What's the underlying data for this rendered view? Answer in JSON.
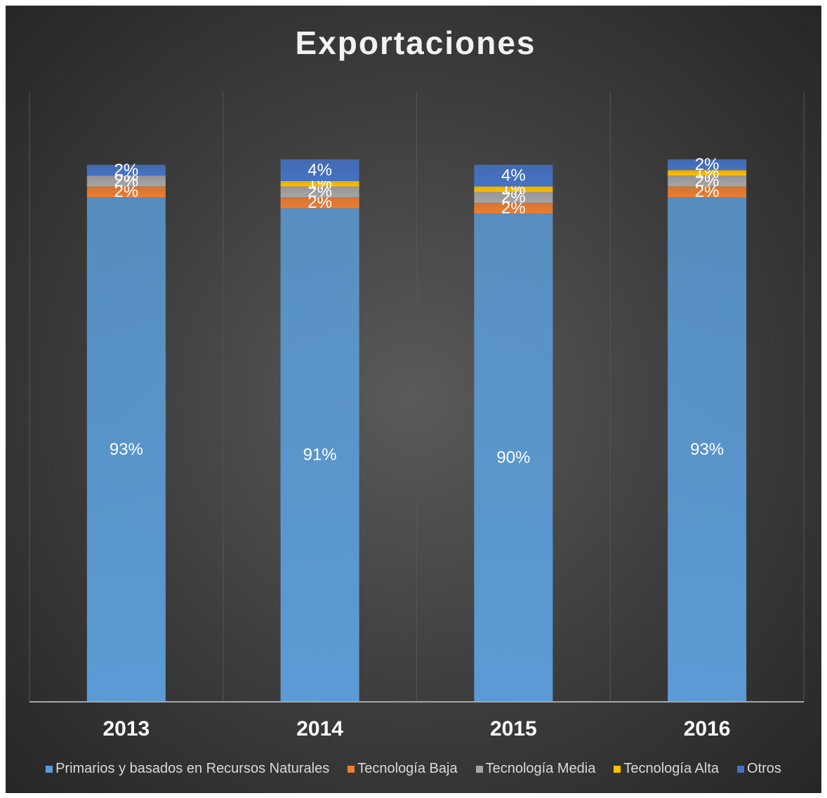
{
  "chart_data": {
    "type": "stacked_bar",
    "title": "Exportaciones",
    "categories": [
      "2013",
      "2014",
      "2015",
      "2016"
    ],
    "series": [
      {
        "name": "Primarios y basados en Recursos Naturales",
        "color": "#5b9bd5",
        "values": [
          93,
          91,
          90,
          93
        ],
        "value_labels": [
          "93%",
          "91%",
          "90%",
          "93%"
        ]
      },
      {
        "name": "Tecnología Baja",
        "color": "#ed7d31",
        "values": [
          2,
          2,
          2,
          2
        ],
        "value_labels": [
          "2%",
          "2%",
          "2%",
          "2%"
        ]
      },
      {
        "name": "Tecnología Media",
        "color": "#a5a5a5",
        "values": [
          2,
          2,
          2,
          2
        ],
        "value_labels": [
          "2%",
          "2%",
          "2%",
          "2%"
        ]
      },
      {
        "name": "Tecnología Alta",
        "color": "#ffc000",
        "values": [
          0,
          1,
          1,
          1
        ],
        "value_labels": [
          "0%",
          "1%",
          "1%",
          "1%"
        ]
      },
      {
        "name": "Otros",
        "color": "#4472c4",
        "values": [
          2,
          4,
          4,
          2
        ],
        "value_labels": [
          "2%",
          "4%",
          "4%",
          "2%"
        ]
      }
    ],
    "ylim": [
      0,
      100
    ],
    "legend": "bottom"
  }
}
